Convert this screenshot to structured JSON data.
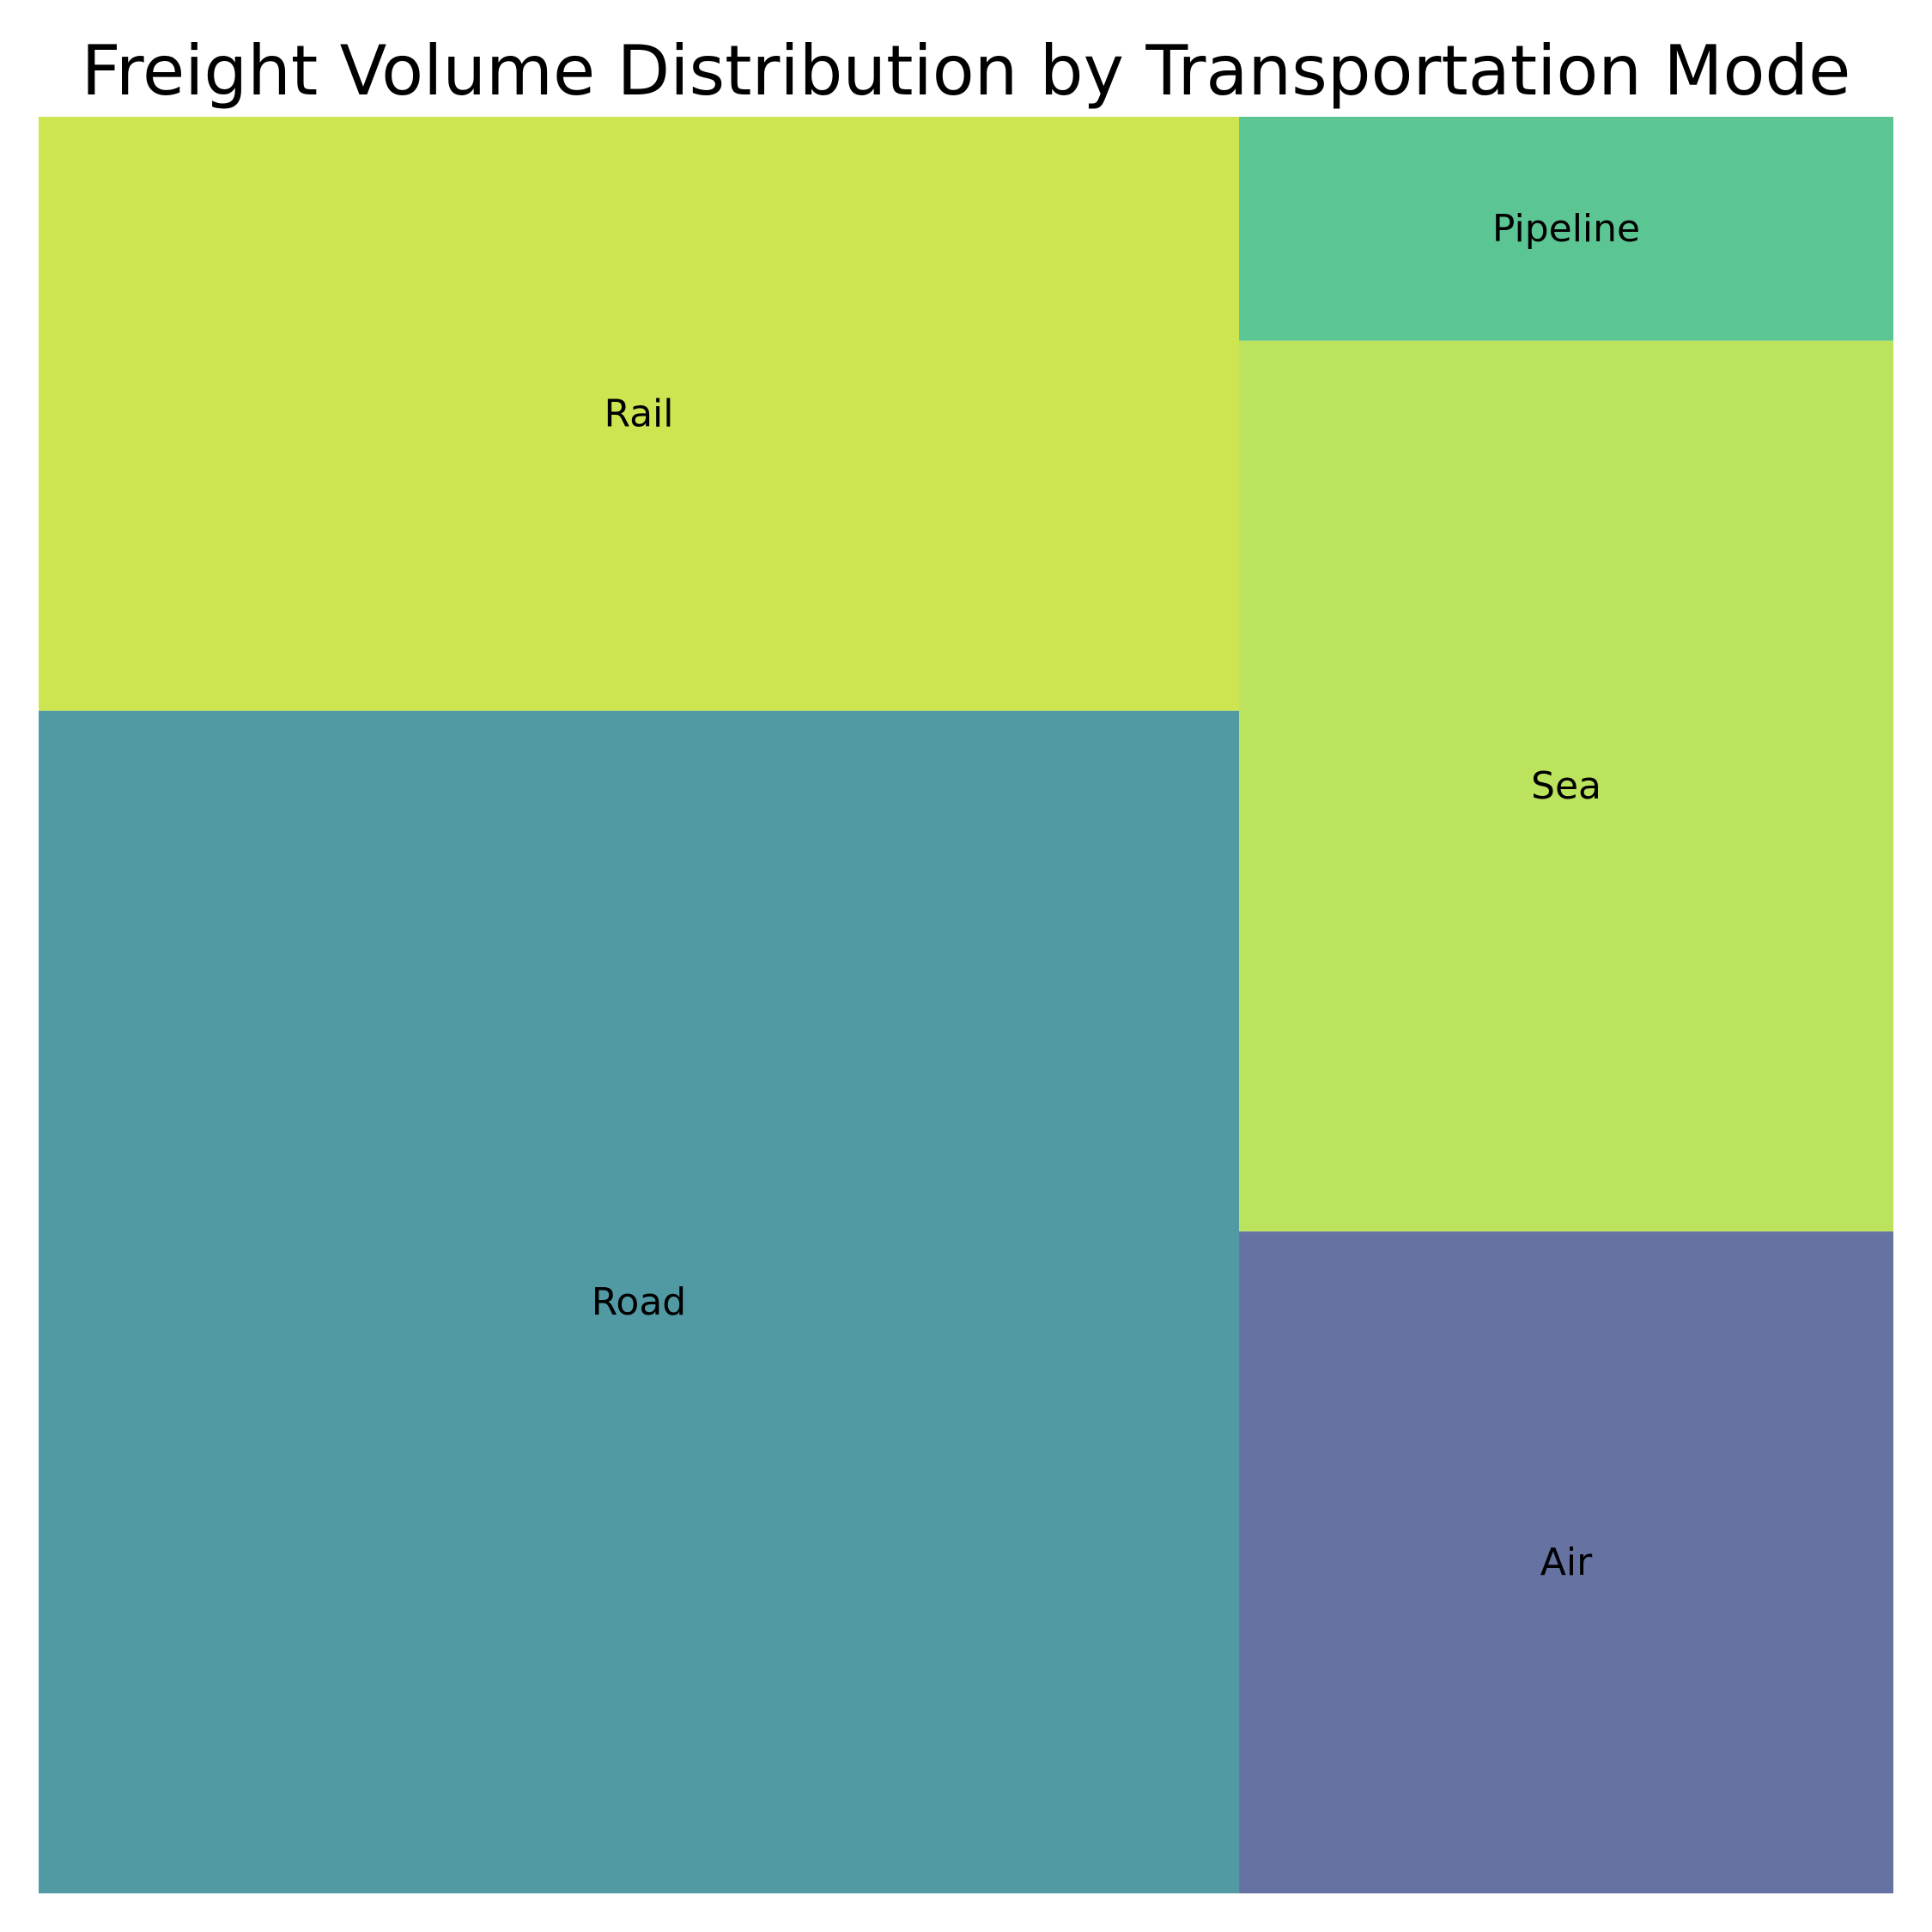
{
  "chart_data": {
    "type": "treemap",
    "title": "Freight Volume Distribution by Transportation Mode",
    "items": [
      {
        "label": "Road",
        "value": 43.6,
        "color": "#519aa4"
      },
      {
        "label": "Rail",
        "value": 21.9,
        "color": "#cde551"
      },
      {
        "label": "Sea",
        "value": 17.9,
        "color": "#bce35e"
      },
      {
        "label": "Air",
        "value": 13.3,
        "color": "#6672a1"
      },
      {
        "label": "Pipeline",
        "value": 4.5,
        "color": "#5cc594"
      }
    ],
    "columns": [
      {
        "items": [
          "Rail",
          "Road"
        ]
      },
      {
        "items": [
          "Pipeline",
          "Sea",
          "Air"
        ]
      }
    ]
  }
}
